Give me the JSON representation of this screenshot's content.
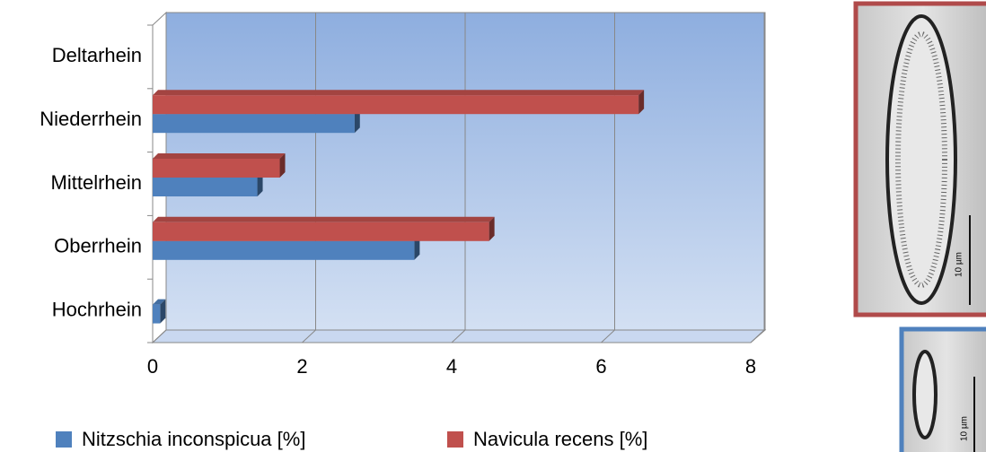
{
  "chart_data": {
    "type": "bar",
    "orientation": "horizontal",
    "categories": [
      "Hochrhein",
      "Oberrhein",
      "Mittelrhein",
      "Niederrhein",
      "Deltarhein"
    ],
    "series": [
      {
        "name": "Nitzschia inconspicua [%]",
        "color": "#4f81bd",
        "values": [
          0.1,
          3.5,
          1.4,
          2.7,
          0
        ]
      },
      {
        "name": "Navicula recens [%]",
        "color": "#c0504d",
        "values": [
          0,
          4.5,
          1.7,
          6.5,
          0
        ]
      }
    ],
    "xlim": [
      0,
      8
    ],
    "xticks": [
      0,
      2,
      4,
      6,
      8
    ],
    "grid": true,
    "legend": "bottom"
  },
  "images": [
    {
      "scale_label": "10 µm"
    },
    {
      "scale_label": "10 µm"
    }
  ]
}
